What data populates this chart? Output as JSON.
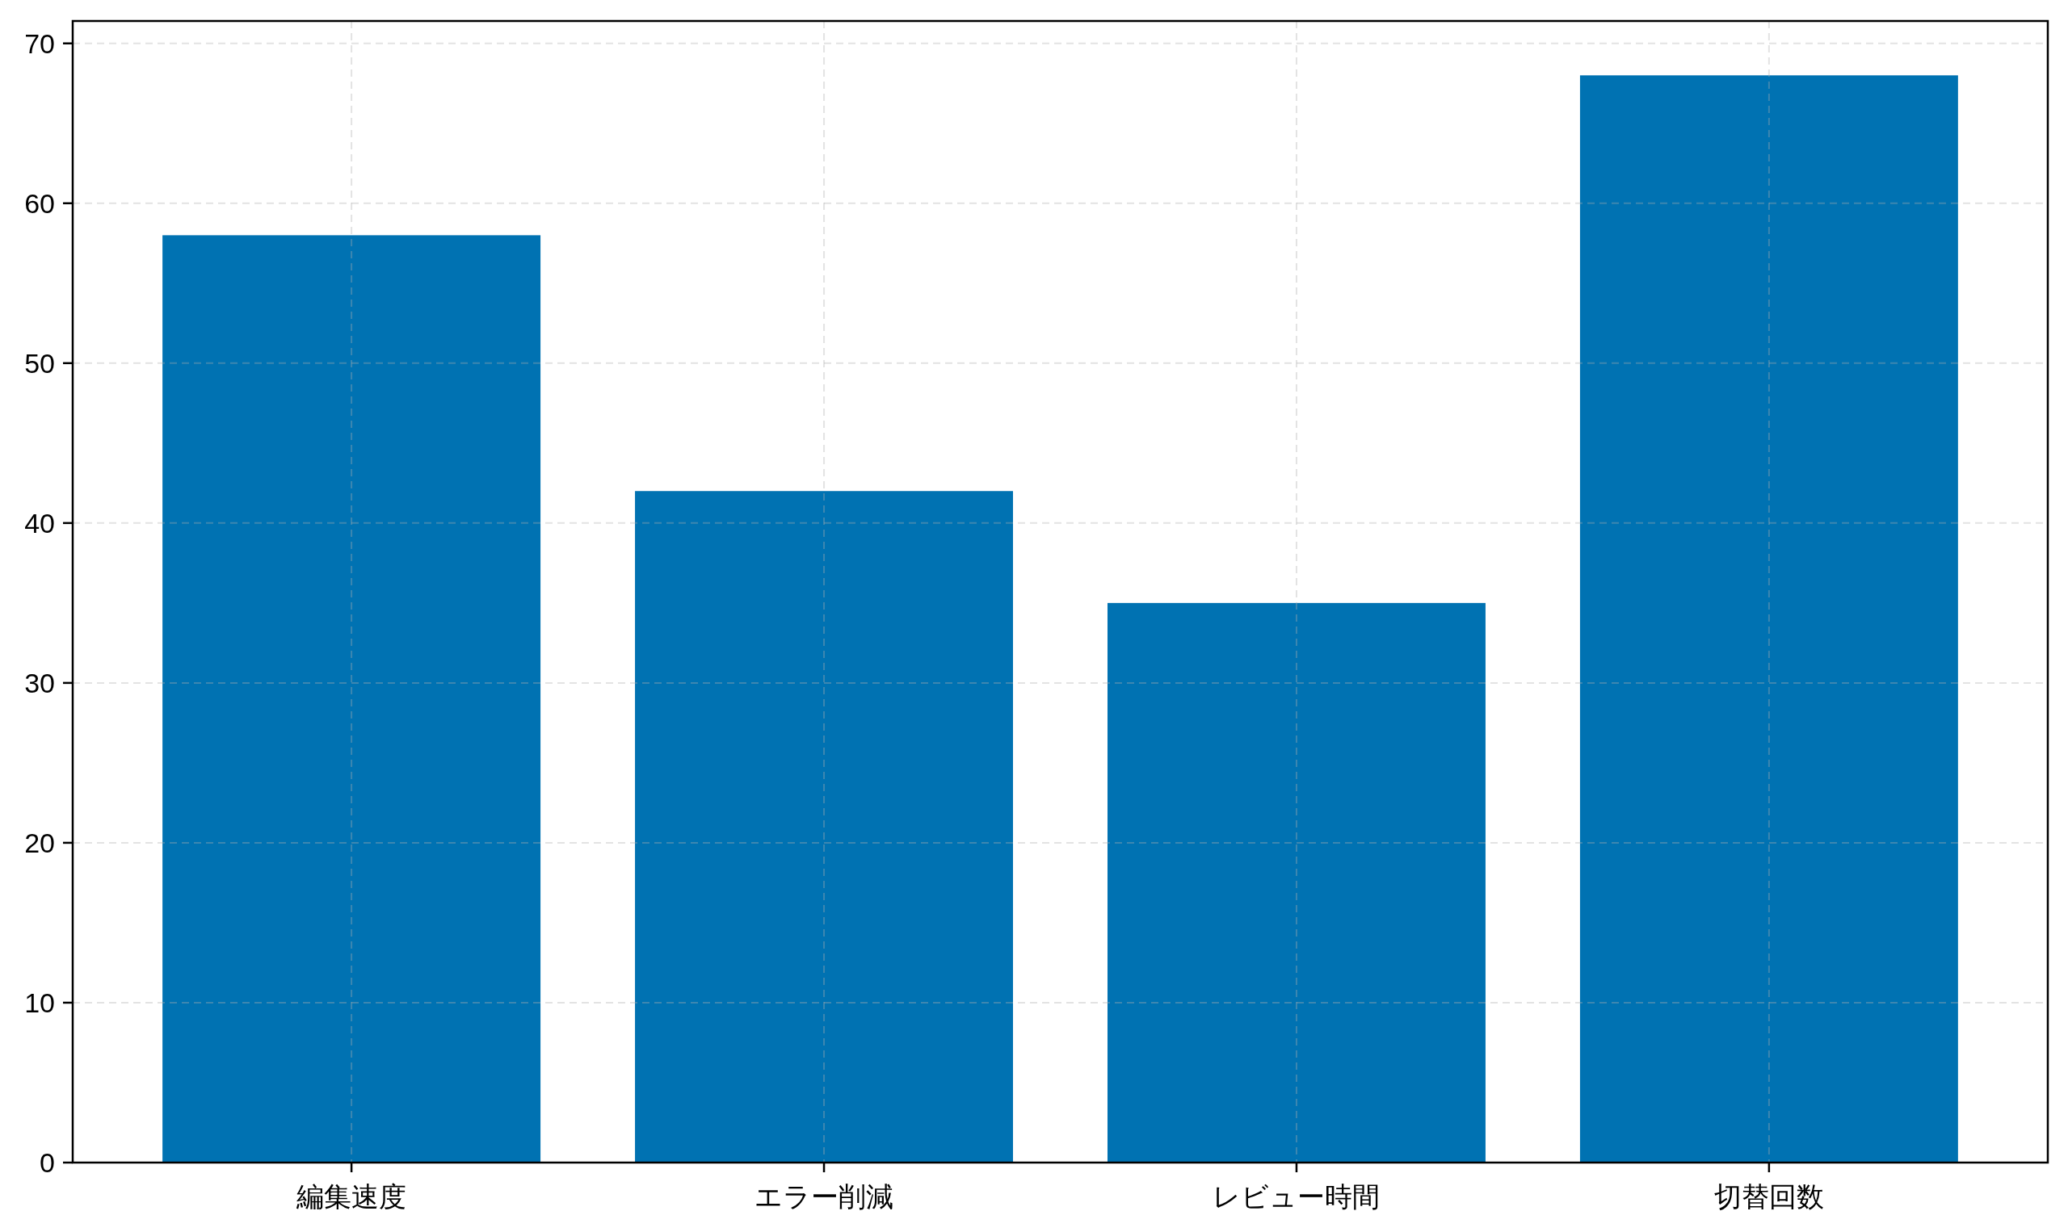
{
  "chart_data": {
    "type": "bar",
    "categories": [
      "編集速度",
      "エラー削減",
      "レビュー時間",
      "切替回数"
    ],
    "values": [
      58,
      42,
      35,
      68
    ],
    "color": "#0072b2",
    "ylim": [
      0,
      71.4
    ],
    "yticks": [
      0,
      10,
      20,
      30,
      40,
      50,
      60,
      70
    ],
    "grid": true
  }
}
